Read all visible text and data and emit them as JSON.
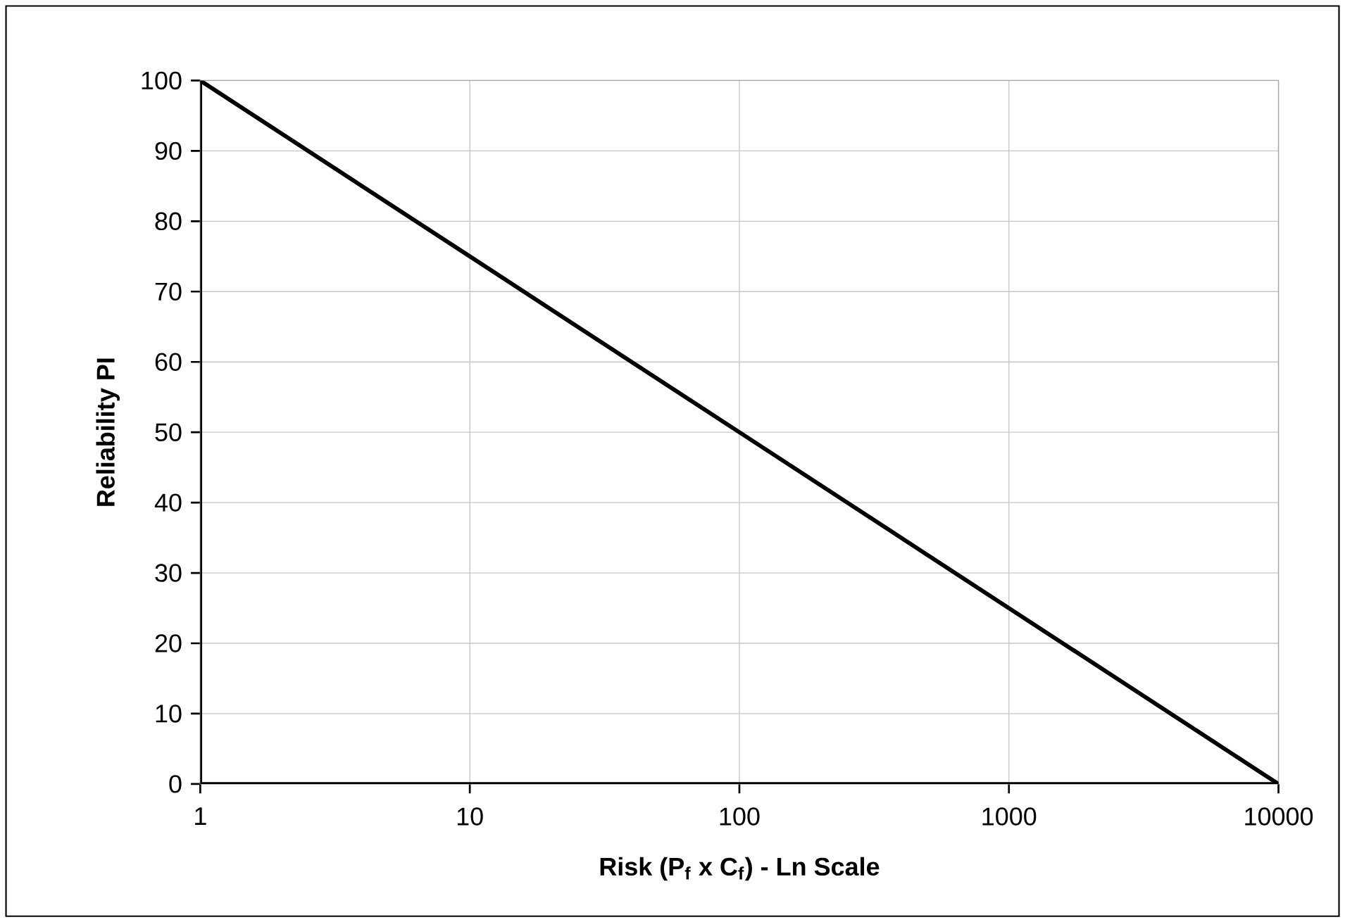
{
  "chart_data": {
    "type": "line",
    "xlabel": "Risk (P$_{f}$ x C$_{f}$) - Ln Scale",
    "ylabel": "Reliability PI",
    "x": [
      1,
      10,
      100,
      1000,
      10000
    ],
    "series": [
      {
        "color": "#000000",
        "values": [
          100,
          75,
          50,
          25,
          0
        ]
      }
    ],
    "log": "x",
    "xlim": [
      1,
      10000
    ],
    "ylim": [
      0,
      100
    ],
    "xticks": [
      1,
      10,
      100,
      1000,
      10000
    ],
    "yticks": [
      0,
      10,
      20,
      30,
      40,
      50,
      60,
      70,
      80,
      90,
      100
    ],
    "grid": true,
    "marker": "none",
    "line_style": "solid"
  }
}
